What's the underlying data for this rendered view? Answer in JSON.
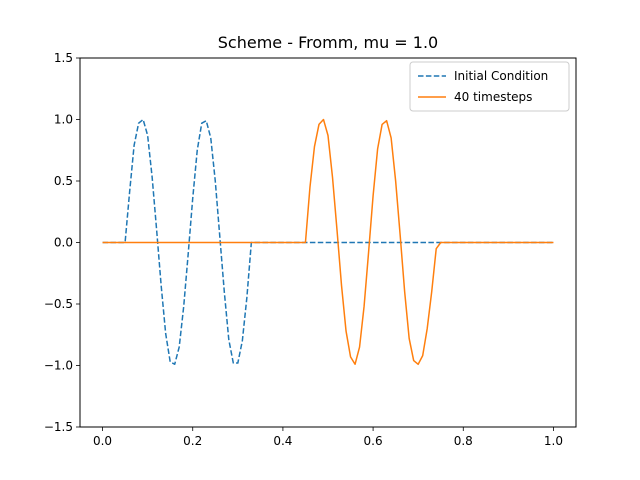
{
  "chart_data": {
    "type": "line",
    "title": "Scheme - Fromm, mu = 1.0",
    "xlabel": "",
    "ylabel": "",
    "xlim": [
      -0.05,
      1.05
    ],
    "ylim": [
      -1.5,
      1.5
    ],
    "xticks": [
      0.0,
      0.2,
      0.4,
      0.6,
      0.8,
      1.0
    ],
    "xtick_labels": [
      "0.0",
      "0.2",
      "0.4",
      "0.6",
      "0.8",
      "1.0"
    ],
    "yticks": [
      -1.5,
      -1.0,
      -0.5,
      0.0,
      0.5,
      1.0,
      1.5
    ],
    "ytick_labels": [
      "−1.5",
      "−1.0",
      "−0.5",
      "0.0",
      "0.5",
      "1.0",
      "1.5"
    ],
    "grid": false,
    "legend_position": "top-right",
    "series": [
      {
        "name": "Initial Condition",
        "color": "#1f77b4",
        "style": "dashed",
        "x": [
          0.0,
          0.01,
          0.02,
          0.03,
          0.04,
          0.05,
          0.06,
          0.07,
          0.08,
          0.09,
          0.1,
          0.11,
          0.12,
          0.13,
          0.14,
          0.15,
          0.16,
          0.17,
          0.18,
          0.19,
          0.2,
          0.21,
          0.22,
          0.23,
          0.24,
          0.25,
          0.26,
          0.27,
          0.28,
          0.29,
          0.3,
          0.31,
          0.32,
          0.33,
          0.34,
          0.35,
          0.36,
          0.37,
          0.38,
          0.39,
          0.4,
          0.41,
          0.42,
          0.43,
          0.44,
          0.45,
          0.46,
          0.47,
          0.48,
          0.49,
          0.5,
          0.51,
          0.52,
          0.53,
          0.54,
          0.55,
          0.56,
          0.57,
          0.58,
          0.59,
          0.6,
          0.61,
          0.62,
          0.63,
          0.64,
          0.65,
          0.66,
          0.67,
          0.68,
          0.69,
          0.7,
          0.71,
          0.72,
          0.73,
          0.74,
          0.75,
          0.76,
          0.77,
          0.78,
          0.79,
          0.8,
          0.81,
          0.82,
          0.83,
          0.84,
          0.85,
          0.86,
          0.87,
          0.88,
          0.89,
          0.9,
          0.91,
          0.92,
          0.93,
          0.94,
          0.95,
          0.96,
          0.97,
          0.98,
          0.99,
          1.0
        ],
        "y": [
          0.0,
          0.0,
          0.0,
          0.0,
          0.0,
          0.0,
          0.41,
          0.79,
          0.97,
          1.0,
          0.87,
          0.53,
          0.1,
          -0.35,
          -0.74,
          -0.97,
          -0.99,
          -0.85,
          -0.52,
          -0.09,
          0.36,
          0.75,
          0.97,
          0.99,
          0.85,
          0.5,
          0.05,
          -0.4,
          -0.79,
          -0.98,
          -0.98,
          -0.8,
          -0.45,
          0.0,
          0.0,
          0.0,
          0.0,
          0.0,
          0.0,
          0.0,
          0.0,
          0.0,
          0.0,
          0.0,
          0.0,
          0.0,
          0.0,
          0.0,
          0.0,
          0.0,
          0.0,
          0.0,
          0.0,
          0.0,
          0.0,
          0.0,
          0.0,
          0.0,
          0.0,
          0.0,
          0.0,
          0.0,
          0.0,
          0.0,
          0.0,
          0.0,
          0.0,
          0.0,
          0.0,
          0.0,
          0.0,
          0.0,
          0.0,
          0.0,
          0.0,
          0.0,
          0.0,
          0.0,
          0.0,
          0.0,
          0.0,
          0.0,
          0.0,
          0.0,
          0.0,
          0.0,
          0.0,
          0.0,
          0.0,
          0.0,
          0.0,
          0.0,
          0.0,
          0.0,
          0.0,
          0.0,
          0.0,
          0.0,
          0.0,
          0.0,
          0.0
        ]
      },
      {
        "name": "40 timesteps",
        "color": "#ff7f0e",
        "style": "solid",
        "x": [
          0.0,
          0.01,
          0.02,
          0.03,
          0.04,
          0.05,
          0.06,
          0.07,
          0.08,
          0.09,
          0.1,
          0.11,
          0.12,
          0.13,
          0.14,
          0.15,
          0.16,
          0.17,
          0.18,
          0.19,
          0.2,
          0.21,
          0.22,
          0.23,
          0.24,
          0.25,
          0.26,
          0.27,
          0.28,
          0.29,
          0.3,
          0.31,
          0.32,
          0.33,
          0.34,
          0.35,
          0.36,
          0.37,
          0.38,
          0.39,
          0.4,
          0.41,
          0.42,
          0.43,
          0.44,
          0.45,
          0.46,
          0.47,
          0.48,
          0.49,
          0.5,
          0.51,
          0.52,
          0.53,
          0.54,
          0.55,
          0.56,
          0.57,
          0.58,
          0.59,
          0.6,
          0.61,
          0.62,
          0.63,
          0.64,
          0.65,
          0.66,
          0.67,
          0.68,
          0.69,
          0.7,
          0.71,
          0.72,
          0.73,
          0.74,
          0.75,
          0.76,
          0.77,
          0.78,
          0.79,
          0.8,
          0.81,
          0.82,
          0.83,
          0.84,
          0.85,
          0.86,
          0.87,
          0.88,
          0.89,
          0.9,
          0.91,
          0.92,
          0.93,
          0.94,
          0.95,
          0.96,
          0.97,
          0.98,
          0.99,
          1.0
        ],
        "y": [
          0.0,
          0.0,
          0.0,
          0.0,
          0.0,
          0.0,
          0.0,
          0.0,
          0.0,
          0.0,
          0.0,
          0.0,
          0.0,
          0.0,
          0.0,
          0.0,
          0.0,
          0.0,
          0.0,
          0.0,
          0.0,
          0.0,
          0.0,
          0.0,
          0.0,
          0.0,
          0.0,
          0.0,
          0.0,
          0.0,
          0.0,
          0.0,
          0.0,
          0.0,
          0.0,
          0.0,
          0.0,
          0.0,
          0.0,
          0.0,
          0.0,
          0.0,
          0.0,
          0.0,
          0.0,
          0.0,
          0.45,
          0.78,
          0.96,
          1.0,
          0.87,
          0.53,
          0.1,
          -0.35,
          -0.72,
          -0.93,
          -0.99,
          -0.85,
          -0.52,
          -0.08,
          0.38,
          0.76,
          0.96,
          0.99,
          0.85,
          0.5,
          0.06,
          -0.4,
          -0.78,
          -0.96,
          -0.99,
          -0.92,
          -0.7,
          -0.4,
          -0.05,
          0.0,
          0.0,
          0.0,
          0.0,
          0.0,
          0.0,
          0.0,
          0.0,
          0.0,
          0.0,
          0.0,
          0.0,
          0.0,
          0.0,
          0.0,
          0.0,
          0.0,
          0.0,
          0.0,
          0.0,
          0.0,
          0.0,
          0.0,
          0.0,
          0.0,
          0.0
        ]
      }
    ]
  }
}
